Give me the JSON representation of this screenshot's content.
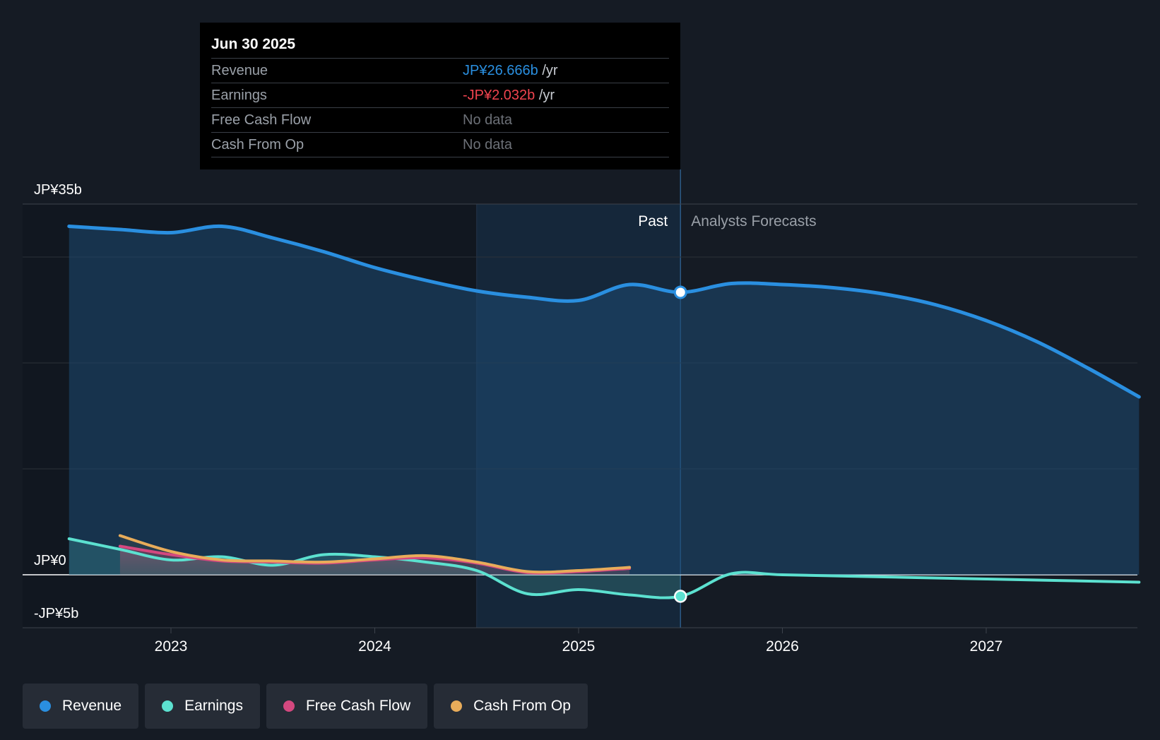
{
  "tooltip": {
    "date": "Jun 30 2025",
    "rows": [
      {
        "label": "Revenue",
        "value": "JP¥26.666b",
        "unit": "/yr"
      },
      {
        "label": "Earnings",
        "value": "-JP¥2.032b",
        "unit": "/yr"
      },
      {
        "label": "Free Cash Flow",
        "value": "No data"
      },
      {
        "label": "Cash From Op",
        "value": "No data"
      }
    ]
  },
  "labels": {
    "past": "Past",
    "forecast": "Analysts Forecasts"
  },
  "legend": [
    {
      "label": "Revenue",
      "color": "#2a8fe0"
    },
    {
      "label": "Earnings",
      "color": "#5ce1d0"
    },
    {
      "label": "Free Cash Flow",
      "color": "#d4487f"
    },
    {
      "label": "Cash From Op",
      "color": "#e8ac5a"
    }
  ],
  "chart_data": {
    "type": "line",
    "y_unit": "JP¥ billions",
    "ylim": [
      -5,
      35
    ],
    "y_tick_labels": [
      {
        "value": 35,
        "label": "JP¥35b"
      },
      {
        "value": 0,
        "label": "JP¥0"
      },
      {
        "value": -5,
        "label": "-JP¥5b"
      }
    ],
    "y_grid": [
      35,
      30,
      20,
      10,
      0,
      -5
    ],
    "xlim": [
      2022.5,
      2027.75
    ],
    "x_ticks": [
      2023,
      2024,
      2025,
      2026,
      2027
    ],
    "shaded_from": 2024.5,
    "past_until": 2025.5,
    "series": [
      {
        "name": "Revenue",
        "color": "#2a8fe0",
        "points": [
          [
            2022.5,
            32.9
          ],
          [
            2022.75,
            32.6
          ],
          [
            2023.0,
            32.3
          ],
          [
            2023.25,
            32.9
          ],
          [
            2023.5,
            31.8
          ],
          [
            2023.75,
            30.5
          ],
          [
            2024.0,
            29.0
          ],
          [
            2024.25,
            27.8
          ],
          [
            2024.5,
            26.8
          ],
          [
            2024.75,
            26.2
          ],
          [
            2025.0,
            25.9
          ],
          [
            2025.25,
            27.4
          ],
          [
            2025.5,
            26.666
          ],
          [
            2025.75,
            27.5
          ],
          [
            2026.0,
            27.4
          ],
          [
            2026.25,
            27.1
          ],
          [
            2026.5,
            26.5
          ],
          [
            2026.75,
            25.5
          ],
          [
            2027.0,
            24.0
          ],
          [
            2027.25,
            22.0
          ],
          [
            2027.5,
            19.5
          ],
          [
            2027.75,
            16.8
          ]
        ]
      },
      {
        "name": "Earnings",
        "color": "#5ce1d0",
        "points": [
          [
            2022.5,
            3.4
          ],
          [
            2022.75,
            2.4
          ],
          [
            2023.0,
            1.4
          ],
          [
            2023.25,
            1.7
          ],
          [
            2023.5,
            0.9
          ],
          [
            2023.75,
            1.9
          ],
          [
            2024.0,
            1.7
          ],
          [
            2024.25,
            1.2
          ],
          [
            2024.5,
            0.4
          ],
          [
            2024.75,
            -1.8
          ],
          [
            2025.0,
            -1.4
          ],
          [
            2025.25,
            -1.9
          ],
          [
            2025.5,
            -2.032
          ],
          [
            2025.75,
            0.1
          ],
          [
            2026.0,
            0.0
          ],
          [
            2026.5,
            -0.2
          ],
          [
            2027.0,
            -0.4
          ],
          [
            2027.75,
            -0.7
          ]
        ]
      },
      {
        "name": "Free Cash Flow",
        "color": "#d4487f",
        "points": [
          [
            2022.75,
            2.7
          ],
          [
            2023.0,
            1.9
          ],
          [
            2023.25,
            1.3
          ],
          [
            2023.5,
            1.2
          ],
          [
            2023.75,
            1.1
          ],
          [
            2024.0,
            1.4
          ],
          [
            2024.25,
            1.6
          ],
          [
            2024.5,
            1.1
          ],
          [
            2024.75,
            0.2
          ],
          [
            2025.0,
            0.3
          ],
          [
            2025.25,
            0.6
          ]
        ]
      },
      {
        "name": "Cash From Op",
        "color": "#e8ac5a",
        "points": [
          [
            2022.75,
            3.7
          ],
          [
            2023.0,
            2.2
          ],
          [
            2023.25,
            1.4
          ],
          [
            2023.5,
            1.3
          ],
          [
            2023.75,
            1.2
          ],
          [
            2024.0,
            1.5
          ],
          [
            2024.25,
            1.8
          ],
          [
            2024.5,
            1.2
          ],
          [
            2024.75,
            0.3
          ],
          [
            2025.0,
            0.4
          ],
          [
            2025.25,
            0.7
          ]
        ]
      }
    ],
    "highlight_x": 2025.5
  }
}
